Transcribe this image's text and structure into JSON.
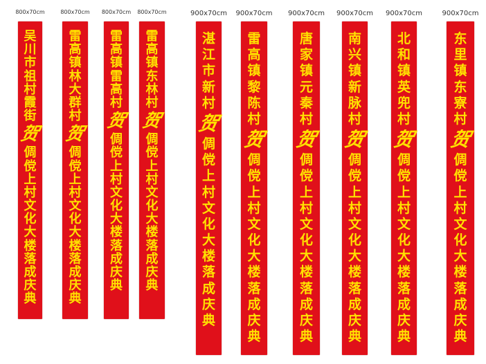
{
  "banners": [
    {
      "size_label": "800x70cm",
      "place": "吴川市祖村霞街",
      "connector": "贺",
      "event": "倜傥上村文化大楼落成庆典"
    },
    {
      "size_label": "800x70cm",
      "place": "雷高镇林大群村",
      "connector": "贺",
      "event": "倜傥上村文化大楼落成庆典"
    },
    {
      "size_label": "800x70cm",
      "place": "雷高镇雷高村",
      "connector": "贺",
      "event": "倜傥上村文化大楼落成庆典"
    },
    {
      "size_label": "800x70cm",
      "place": "雷高镇东林村",
      "connector": "贺",
      "event": "倜傥上村文化大楼落成庆典"
    },
    {
      "size_label": "900x70cm",
      "place": "湛江市新村",
      "connector": "贺",
      "event": "倜傥上村文化大楼落成庆典"
    },
    {
      "size_label": "900x70cm",
      "place": "雷高镇黎陈村",
      "connector": "贺",
      "event": "倜傥上村文化大楼落成庆典"
    },
    {
      "size_label": "900x70cm",
      "place": "唐家镇元秦村",
      "connector": "贺",
      "event": "倜傥上村文化大楼落成庆典"
    },
    {
      "size_label": "900x70cm",
      "place": "南兴镇新脉村",
      "connector": "贺",
      "event": "倜傥上村文化大楼落成庆典"
    },
    {
      "size_label": "900x70cm",
      "place": "北和镇英兜村",
      "connector": "贺",
      "event": "倜傥上村文化大楼落成庆典"
    },
    {
      "size_label": "900x70cm",
      "place": "东里镇东寮村",
      "connector": "贺",
      "event": "倜傥上村文化大楼落成庆典"
    }
  ],
  "colors": {
    "banner_red": "#e0101a",
    "text_yellow": "#ffe100",
    "label_gray": "#333333"
  }
}
